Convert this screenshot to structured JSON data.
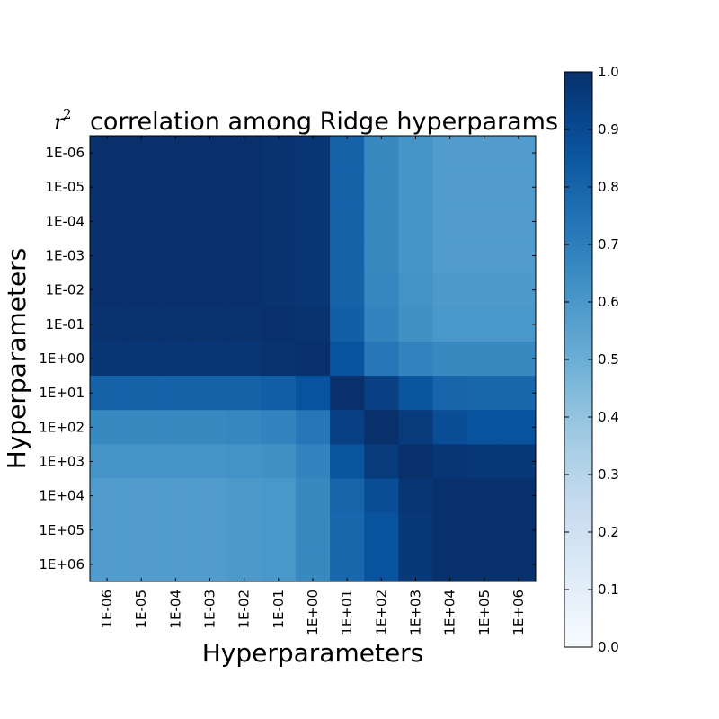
{
  "chart_data": {
    "type": "heatmap",
    "title": "correlation among Ridge hyperparams",
    "title_symbol": "r",
    "title_superscript": "2",
    "xlabel": "Hyperparameters",
    "ylabel": "Hyperparameters",
    "categories": [
      "1E-06",
      "1E-05",
      "1E-04",
      "1E-03",
      "1E-02",
      "1E-01",
      "1E+00",
      "1E+01",
      "1E+02",
      "1E+03",
      "1E+04",
      "1E+05",
      "1E+06"
    ],
    "colormap": "Blues",
    "clim": [
      0.0,
      1.0
    ],
    "colorbar_ticks": [
      "0.0",
      "0.1",
      "0.2",
      "0.3",
      "0.4",
      "0.5",
      "0.6",
      "0.7",
      "0.8",
      "0.9",
      "1.0"
    ],
    "values": [
      [
        1.0,
        1.0,
        1.0,
        1.0,
        1.0,
        0.99,
        0.98,
        0.81,
        0.66,
        0.61,
        0.58,
        0.58,
        0.58
      ],
      [
        1.0,
        1.0,
        1.0,
        1.0,
        1.0,
        0.99,
        0.98,
        0.81,
        0.66,
        0.61,
        0.58,
        0.58,
        0.58
      ],
      [
        1.0,
        1.0,
        1.0,
        1.0,
        1.0,
        0.99,
        0.98,
        0.81,
        0.66,
        0.61,
        0.58,
        0.58,
        0.58
      ],
      [
        1.0,
        1.0,
        1.0,
        1.0,
        1.0,
        0.99,
        0.98,
        0.81,
        0.66,
        0.61,
        0.58,
        0.58,
        0.58
      ],
      [
        1.0,
        1.0,
        1.0,
        1.0,
        1.0,
        0.99,
        0.98,
        0.81,
        0.67,
        0.62,
        0.59,
        0.59,
        0.59
      ],
      [
        0.99,
        0.99,
        0.99,
        0.99,
        0.99,
        1.0,
        0.99,
        0.82,
        0.68,
        0.63,
        0.6,
        0.6,
        0.6
      ],
      [
        0.98,
        0.98,
        0.98,
        0.98,
        0.98,
        0.99,
        1.0,
        0.87,
        0.73,
        0.68,
        0.66,
        0.66,
        0.66
      ],
      [
        0.81,
        0.81,
        0.81,
        0.81,
        0.81,
        0.82,
        0.87,
        1.0,
        0.94,
        0.86,
        0.8,
        0.79,
        0.79
      ],
      [
        0.66,
        0.66,
        0.66,
        0.66,
        0.67,
        0.68,
        0.73,
        0.94,
        1.0,
        0.96,
        0.89,
        0.87,
        0.87
      ],
      [
        0.61,
        0.61,
        0.61,
        0.61,
        0.62,
        0.63,
        0.68,
        0.86,
        0.96,
        1.0,
        0.98,
        0.97,
        0.97
      ],
      [
        0.58,
        0.58,
        0.58,
        0.58,
        0.59,
        0.6,
        0.66,
        0.8,
        0.89,
        0.98,
        1.0,
        1.0,
        1.0
      ],
      [
        0.58,
        0.58,
        0.58,
        0.58,
        0.59,
        0.6,
        0.66,
        0.79,
        0.87,
        0.97,
        1.0,
        1.0,
        1.0
      ],
      [
        0.58,
        0.58,
        0.58,
        0.58,
        0.59,
        0.6,
        0.66,
        0.79,
        0.87,
        0.97,
        1.0,
        1.0,
        1.0
      ]
    ]
  }
}
